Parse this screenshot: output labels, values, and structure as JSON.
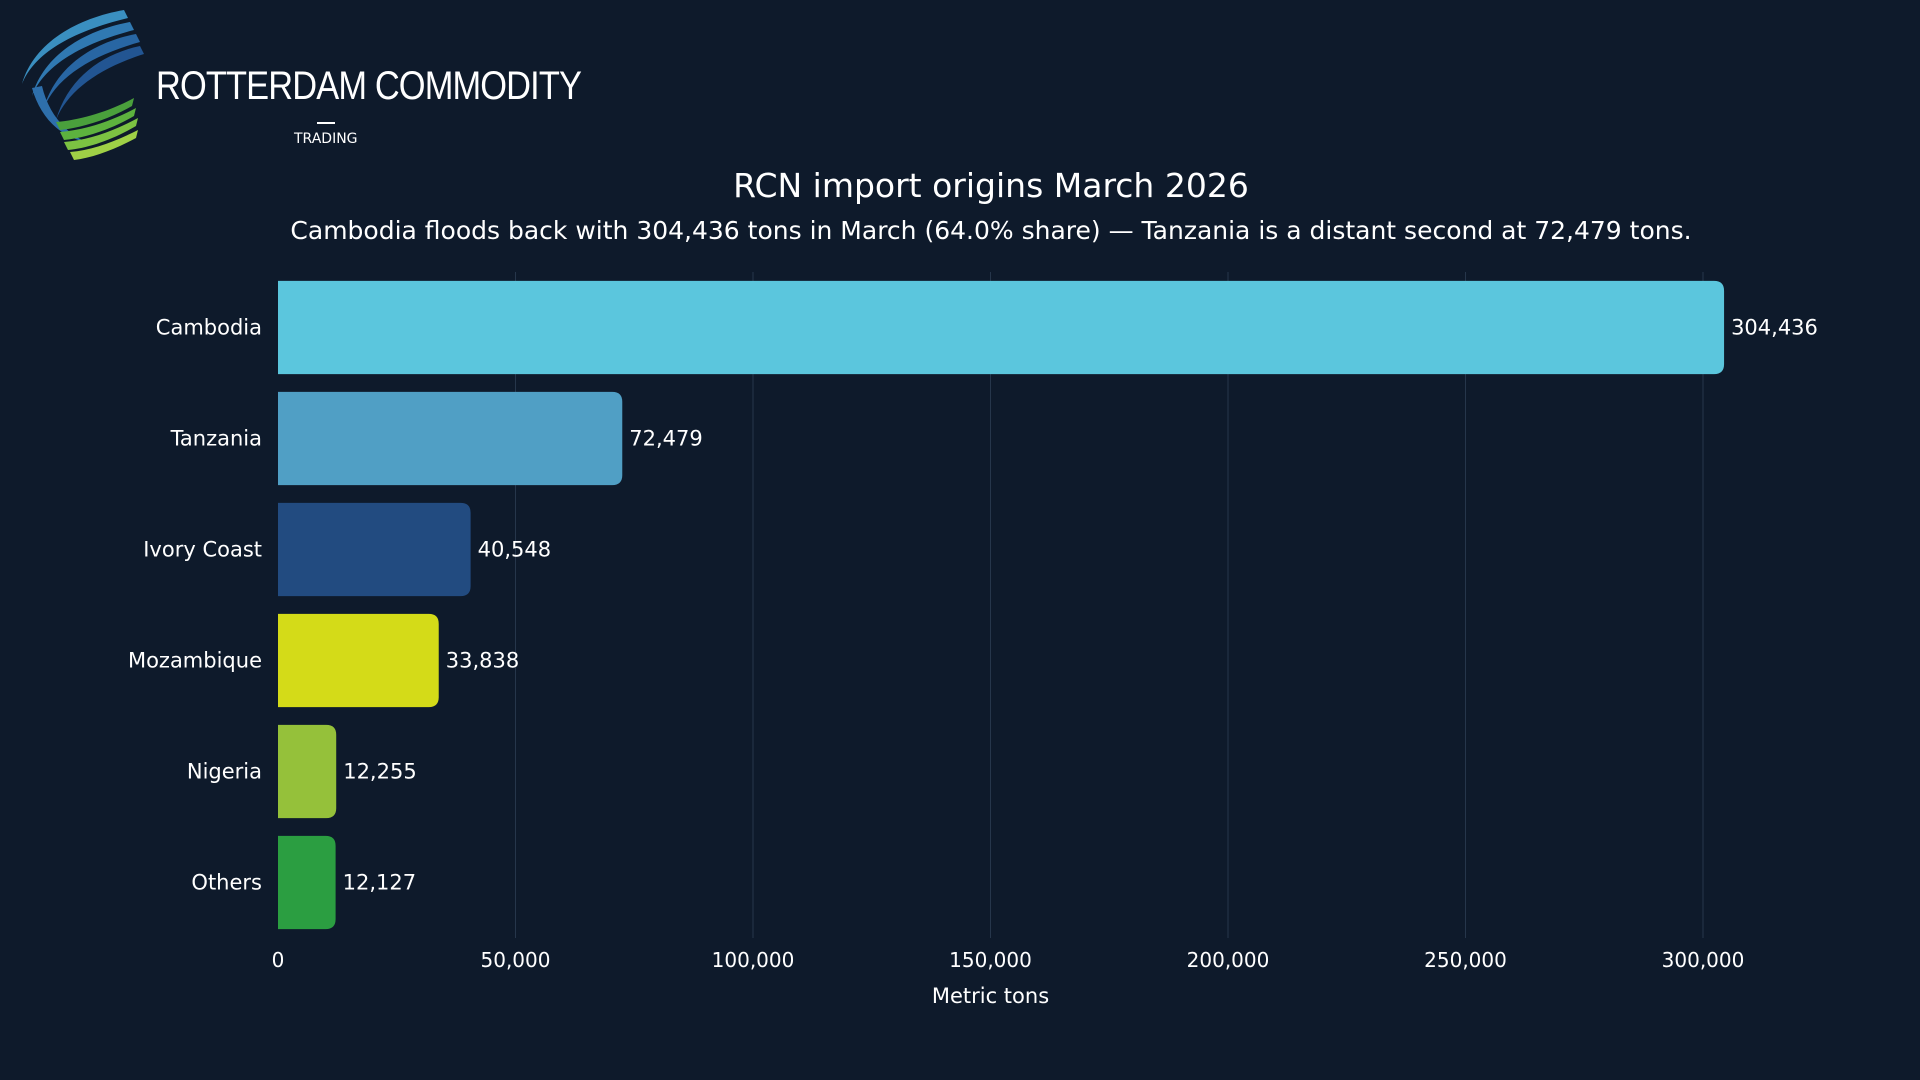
{
  "logo": {
    "name": "ROTTERDAM COMMODITY",
    "sub": "TRADING"
  },
  "chart_data": {
    "type": "bar",
    "orientation": "horizontal",
    "title": "RCN import origins March 2026",
    "subtitle": "Cambodia floods back with 304,436 tons in March (64.0% share) — Tanzania is a distant second at 72,479 tons.",
    "xlabel": "Metric tons",
    "ylabel": "",
    "xlim": [
      0,
      300000
    ],
    "xticks": [
      0,
      50000,
      100000,
      150000,
      200000,
      250000,
      300000
    ],
    "xtick_labels": [
      "0",
      "50,000",
      "100,000",
      "150,000",
      "200,000",
      "250,000",
      "300,000"
    ],
    "grid": "vertical",
    "categories": [
      "Cambodia",
      "Tanzania",
      "Ivory Coast",
      "Mozambique",
      "Nigeria",
      "Others"
    ],
    "values": [
      304436,
      72479,
      40548,
      33838,
      12255,
      12127
    ],
    "data_labels": [
      "304,436",
      "72,479",
      "40,548",
      "33,838",
      "12,255",
      "12,127"
    ],
    "colors": [
      "#5bc6dd",
      "#509fc5",
      "#224b80",
      "#d4db18",
      "#95c13a",
      "#2b9e41"
    ]
  }
}
